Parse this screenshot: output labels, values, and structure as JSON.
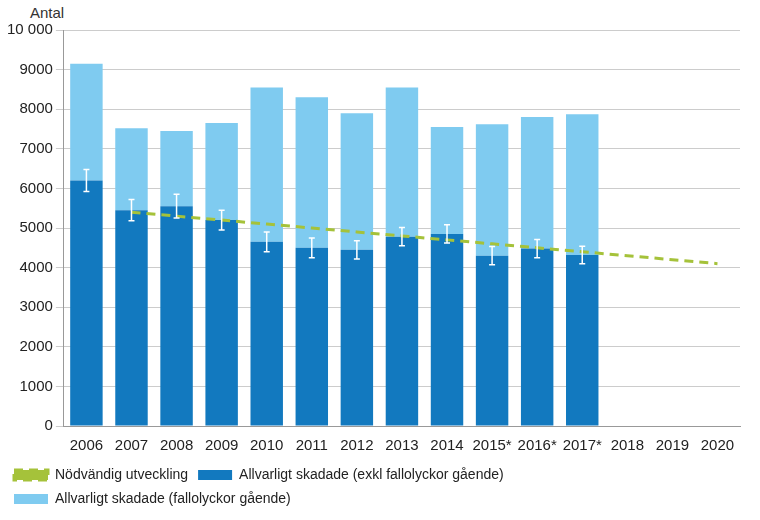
{
  "chart_data": {
    "type": "bar",
    "y_label": "Antal",
    "categories": [
      "2006",
      "2007",
      "2008",
      "2009",
      "2010",
      "2011",
      "2012",
      "2013",
      "2014",
      "2015*",
      "2016*",
      "2017*",
      "2018",
      "2019",
      "2020"
    ],
    "series": [
      {
        "name": "Allvarligt skadade (exkl fallolyckor gående)",
        "type": "bar",
        "color": "#1279bf",
        "values": [
          6200,
          5450,
          5550,
          5200,
          4650,
          4500,
          4450,
          4780,
          4850,
          4300,
          4480,
          4320,
          null,
          null,
          null
        ],
        "error": [
          280,
          270,
          300,
          250,
          250,
          250,
          230,
          230,
          230,
          230,
          230,
          220,
          null,
          null,
          null
        ]
      },
      {
        "name": "Allvarligt skadade (fallolyckor gående)",
        "type": "bar",
        "color": "#7fcbf0",
        "values": [
          2950,
          2070,
          1900,
          2450,
          3900,
          3800,
          3450,
          3770,
          2700,
          3320,
          3320,
          3550,
          null,
          null,
          null
        ]
      },
      {
        "name": "Nödvändig utveckling",
        "type": "line",
        "color": "#a5c23a",
        "line_style": "dashed",
        "values": [
          null,
          5400,
          5300,
          5200,
          5100,
          5000,
          4900,
          4800,
          4700,
          4600,
          4500,
          4400,
          4300,
          4200,
          4100
        ]
      }
    ],
    "stacked": true,
    "ylim": [
      0,
      10000
    ],
    "yticks": [
      0,
      1000,
      2000,
      3000,
      4000,
      5000,
      6000,
      7000,
      8000,
      9000,
      {
        "value": 10000,
        "label": "10 000"
      }
    ],
    "grid": true,
    "legend": "bottom"
  }
}
